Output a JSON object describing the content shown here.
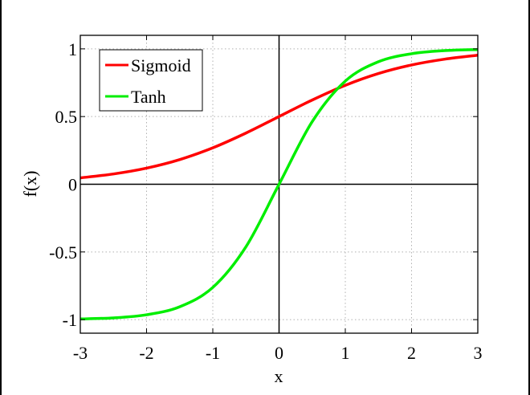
{
  "chart_data": {
    "type": "line",
    "title": "",
    "xlabel": "x",
    "ylabel": "f(x)",
    "xlim": [
      -3,
      3
    ],
    "ylim": [
      -1.1,
      1.1
    ],
    "xticks": [
      -3,
      -2,
      -1,
      0,
      1,
      2,
      3
    ],
    "xtick_labels": [
      "-3",
      "-2",
      "-1",
      "0",
      "1",
      "2",
      "3"
    ],
    "yticks": [
      -1,
      -0.5,
      0,
      0.5,
      1
    ],
    "ytick_labels": [
      "-1",
      "-0.5",
      "0",
      "0.5",
      "1"
    ],
    "grid": true,
    "legend_position": "top-left",
    "series": [
      {
        "name": "Sigmoid",
        "color": "#ff0000",
        "x": [
          -3,
          -2.5,
          -2,
          -1.5,
          -1,
          -0.5,
          0,
          0.5,
          1,
          1.5,
          2,
          2.5,
          3
        ],
        "y": [
          0.047,
          0.076,
          0.119,
          0.182,
          0.269,
          0.378,
          0.5,
          0.622,
          0.731,
          0.818,
          0.881,
          0.924,
          0.953
        ]
      },
      {
        "name": "Tanh",
        "color": "#00ee00",
        "x": [
          -3,
          -2.5,
          -2,
          -1.5,
          -1,
          -0.5,
          0,
          0.5,
          1,
          1.5,
          2,
          2.5,
          3
        ],
        "y": [
          -0.995,
          -0.987,
          -0.964,
          -0.905,
          -0.762,
          -0.462,
          0,
          0.462,
          0.762,
          0.905,
          0.964,
          0.987,
          0.995
        ]
      }
    ]
  }
}
